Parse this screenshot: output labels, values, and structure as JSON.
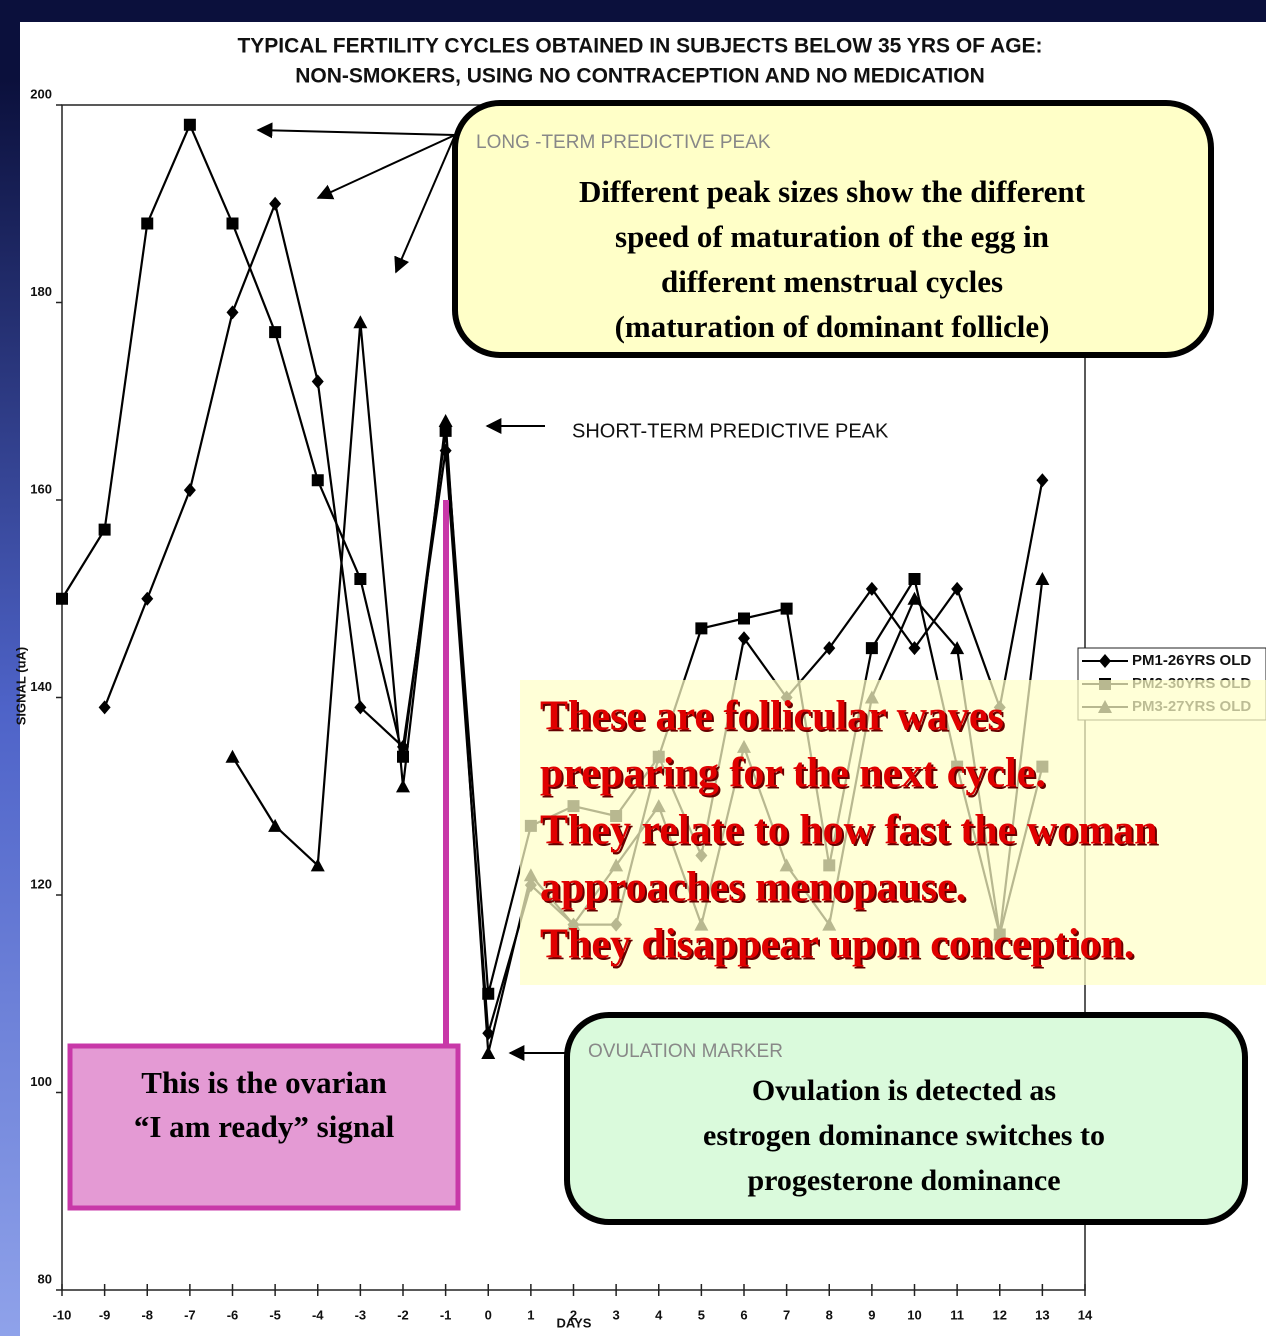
{
  "chart_data": {
    "type": "line",
    "title_lines": [
      "TYPICAL FERTILITY CYCLES OBTAINED IN SUBJECTS BELOW 35 YRS OF AGE:",
      "NON-SMOKERS, USING NO CONTRACEPTION AND NO MEDICATION"
    ],
    "x_label": "DAYS",
    "y_label": "SIGNAL (uA)",
    "x": [
      -10,
      -9,
      -8,
      -7,
      -6,
      -5,
      -4,
      -3,
      -2,
      -1,
      0,
      1,
      2,
      3,
      4,
      5,
      6,
      7,
      8,
      9,
      10,
      11,
      12,
      13,
      14
    ],
    "xlim": [
      -10,
      14
    ],
    "xticks": [
      -10,
      -9,
      -8,
      -7,
      -6,
      -5,
      -4,
      -3,
      -2,
      -1,
      0,
      1,
      2,
      3,
      4,
      5,
      6,
      7,
      8,
      9,
      10,
      11,
      12,
      13,
      14
    ],
    "ylim": [
      80,
      200
    ],
    "yticks": [
      80,
      100,
      120,
      140,
      160,
      180,
      200
    ],
    "legend_position": "right",
    "series": [
      {
        "name": "PM1-26YRS OLD",
        "color": "#000000",
        "marker": "diamond",
        "values": [
          null,
          139,
          150,
          161,
          179,
          190,
          172,
          139,
          135,
          165,
          106,
          121,
          117,
          117,
          134,
          124,
          146,
          140,
          145,
          151,
          145,
          151,
          139,
          162,
          null
        ]
      },
      {
        "name": "PM2-30YRS OLD",
        "color": "#000000",
        "marker": "square",
        "values": [
          150,
          157,
          188,
          198,
          188,
          177,
          162,
          152,
          134,
          167,
          110,
          127,
          129,
          128,
          134,
          147,
          148,
          149,
          123,
          145,
          152,
          133,
          116,
          133,
          null
        ]
      },
      {
        "name": "PM3-27YRS OLD",
        "color": "#000000",
        "marker": "triangle",
        "values": [
          null,
          null,
          null,
          null,
          134,
          127,
          123,
          178,
          131,
          168,
          104,
          122,
          117,
          123,
          129,
          117,
          135,
          123,
          117,
          140,
          150,
          145,
          116,
          152,
          null
        ]
      }
    ],
    "annotations": {
      "long_term_label": "LONG -TERM PREDICTIVE PEAK",
      "long_term_note": [
        "Different peak sizes show the different",
        "speed of maturation of the egg in",
        "different menstrual cycles",
        "(maturation of dominant follicle)"
      ],
      "short_term_label": "SHORT-TERM PREDICTIVE PEAK",
      "waves_note": [
        "These are follicular waves",
        "preparing for the next cycle.",
        "They relate to how fast the woman",
        "approaches menopause.",
        "They disappear upon conception."
      ],
      "ovulation_label": "OVULATION MARKER",
      "ovulation_note": [
        "Ovulation is detected as",
        "estrogen dominance switches to",
        "progesterone dominance"
      ],
      "ready_note": [
        "This is the ovarian",
        "“I am ready” signal"
      ]
    }
  }
}
